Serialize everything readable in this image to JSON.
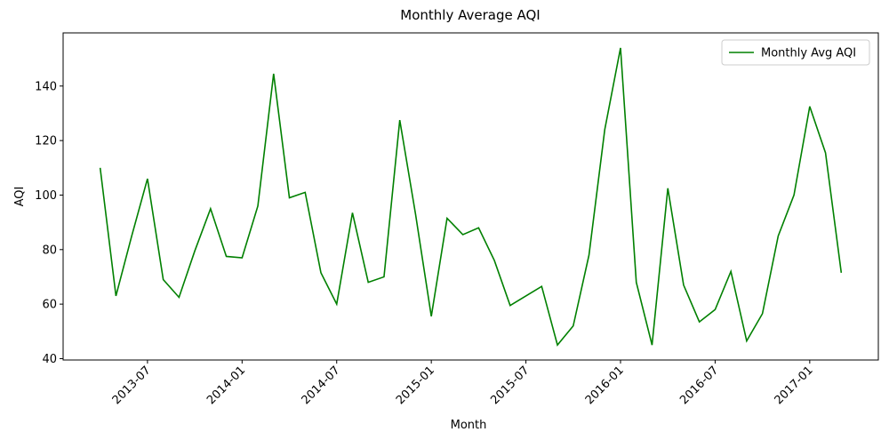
{
  "chart_data": {
    "type": "line",
    "title": "Monthly Average AQI",
    "x_label": "Month",
    "y_label": "AQI",
    "x": [
      "2013-04",
      "2013-05",
      "2013-06",
      "2013-07",
      "2013-08",
      "2013-09",
      "2013-10",
      "2013-11",
      "2013-12",
      "2014-01",
      "2014-02",
      "2014-03",
      "2014-04",
      "2014-05",
      "2014-06",
      "2014-07",
      "2014-08",
      "2014-09",
      "2014-10",
      "2014-11",
      "2014-12",
      "2015-01",
      "2015-02",
      "2015-03",
      "2015-04",
      "2015-05",
      "2015-06",
      "2015-07",
      "2015-08",
      "2015-09",
      "2015-10",
      "2015-11",
      "2015-12",
      "2016-01",
      "2016-02",
      "2016-03",
      "2016-04",
      "2016-05",
      "2016-06",
      "2016-07",
      "2016-08",
      "2016-09",
      "2016-10",
      "2016-11",
      "2016-12",
      "2017-01",
      "2017-02",
      "2017-03"
    ],
    "series": [
      {
        "name": "Monthly Avg AQI",
        "color": "#008000",
        "values": [
          110,
          63,
          85,
          106,
          69,
          62.5,
          79.5,
          95,
          77.5,
          77,
          96,
          144.5,
          99,
          101,
          71.5,
          60,
          93.5,
          68,
          70,
          127.5,
          93,
          55.5,
          91.5,
          85.5,
          88,
          76,
          59.5,
          63,
          66.5,
          45,
          52,
          78,
          124,
          154,
          68,
          45,
          102.5,
          67,
          53.5,
          58,
          72,
          46.5,
          56.5,
          85,
          100,
          132.5,
          115.5,
          71.5
        ]
      }
    ],
    "xticks": [
      "2013-07",
      "2014-01",
      "2014-07",
      "2015-01",
      "2015-07",
      "2016-01",
      "2016-07",
      "2017-01"
    ],
    "ylim": [
      39.5,
      159.5
    ],
    "yticks": [
      40,
      60,
      80,
      100,
      120,
      140
    ],
    "legend": "upper right"
  }
}
